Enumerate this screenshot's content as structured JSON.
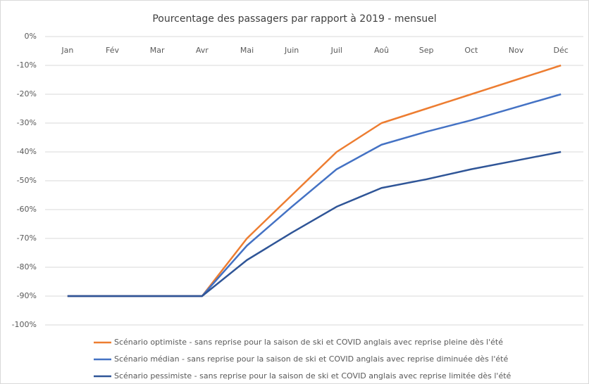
{
  "chart_data": {
    "type": "line",
    "title": "Pourcentage des passagers par rapport à 2019 - mensuel",
    "categories": [
      "Jan",
      "Fév",
      "Mar",
      "Avr",
      "Mai",
      "Juin",
      "Juil",
      "Aoû",
      "Sep",
      "Oct",
      "Nov",
      "Déc"
    ],
    "series": [
      {
        "name": "Scénario optimiste - sans reprise pour la saison de ski et COVID anglais avec reprise pleine dès l'été",
        "color": "#ed7d31",
        "values": [
          -90,
          -90,
          -90,
          -90,
          -70,
          -55,
          -40,
          -30,
          -25,
          -20,
          -15,
          -10
        ]
      },
      {
        "name": "Scénario médian - sans reprise pour la saison de ski et COVID anglais avec reprise diminuée dès l'été",
        "color": "#4472c4",
        "values": [
          -90,
          -90,
          -90,
          -90,
          -72.5,
          -59,
          -46,
          -37.5,
          -33,
          -29,
          -24.5,
          -20
        ]
      },
      {
        "name": "Scénario pessimiste - sans reprise pour la saison de ski et COVID anglais avec reprise limitée dès l'été",
        "color": "#2f5597",
        "values": [
          -90,
          -90,
          -90,
          -90,
          -77.5,
          -68,
          -59,
          -52.5,
          -49.5,
          -46,
          -43,
          -40
        ]
      }
    ],
    "ylim": [
      -100,
      0
    ],
    "yticks": [
      {
        "value": 0,
        "label": "0%"
      },
      {
        "value": -10,
        "label": "-10%"
      },
      {
        "value": -20,
        "label": "-20%"
      },
      {
        "value": -30,
        "label": "-30%"
      },
      {
        "value": -40,
        "label": "-40%"
      },
      {
        "value": -50,
        "label": "-50%"
      },
      {
        "value": -60,
        "label": "-60%"
      },
      {
        "value": -70,
        "label": "-70%"
      },
      {
        "value": -80,
        "label": "-80%"
      },
      {
        "value": -90,
        "label": "-90%"
      },
      {
        "value": -100,
        "label": "-100%"
      }
    ],
    "grid": true,
    "legend": "bottom"
  }
}
